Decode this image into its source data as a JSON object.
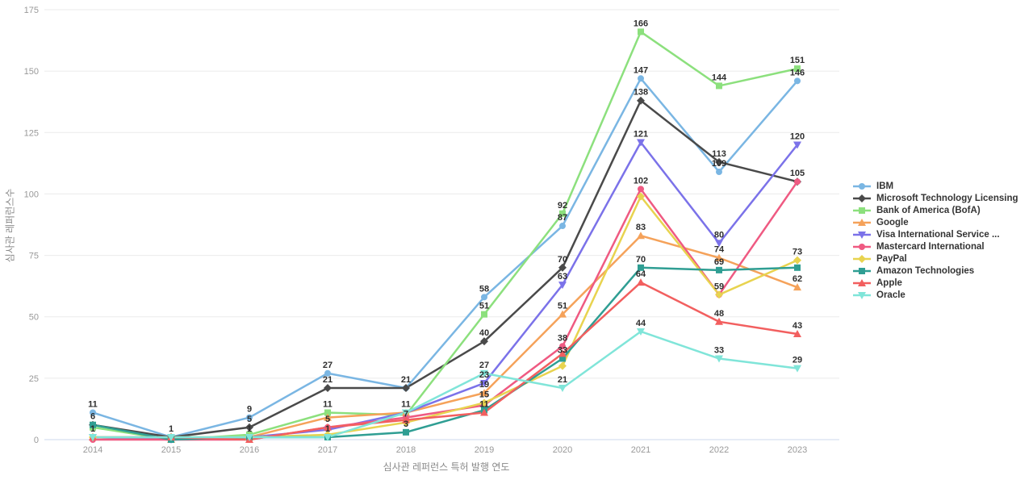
{
  "chart_data": {
    "type": "line",
    "title": "",
    "xlabel": "심사관 레퍼런스 특허 발행 연도",
    "ylabel": "심사관 레퍼런스수",
    "ylim": [
      0,
      175
    ],
    "yticks": [
      0,
      25,
      50,
      75,
      100,
      125,
      150,
      175
    ],
    "grid": "horizontal",
    "legend_position": "right",
    "categories": [
      "2014",
      "2015",
      "2016",
      "2017",
      "2018",
      "2019",
      "2020",
      "2021",
      "2022",
      "2023"
    ],
    "series": [
      {
        "name": "IBM",
        "color": "#7ab6e3",
        "marker": "circle",
        "values": [
          11,
          1,
          9,
          27,
          21,
          58,
          87,
          147,
          109,
          146
        ]
      },
      {
        "name": "Microsoft Technology Licensing",
        "color": "#4a4a4a",
        "marker": "diamond",
        "values": [
          6,
          1,
          5,
          21,
          21,
          40,
          70,
          138,
          113,
          105
        ]
      },
      {
        "name": "Bank of America (BofA)",
        "color": "#8ce07d",
        "marker": "square",
        "values": [
          5,
          0,
          2,
          11,
          10,
          51,
          92,
          166,
          144,
          151
        ]
      },
      {
        "name": "Google",
        "color": "#f5a25a",
        "marker": "triangle-up",
        "values": [
          1,
          0,
          1,
          9,
          11,
          19,
          51,
          83,
          74,
          62
        ]
      },
      {
        "name": "Visa International Service ...",
        "color": "#7b72e9",
        "marker": "triangle-down",
        "values": [
          1,
          0,
          1,
          4,
          11,
          23,
          63,
          121,
          80,
          120
        ]
      },
      {
        "name": "Mastercard International",
        "color": "#ef5a82",
        "marker": "circle",
        "values": [
          0,
          0,
          0,
          5,
          9,
          14,
          38,
          102,
          59,
          105
        ]
      },
      {
        "name": "PayPal",
        "color": "#e8d34f",
        "marker": "diamond",
        "values": [
          1,
          1,
          1,
          2,
          7,
          15,
          30,
          99,
          59,
          73
        ]
      },
      {
        "name": "Amazon Technologies",
        "color": "#2f9e93",
        "marker": "square",
        "values": [
          6,
          0,
          1,
          1,
          3,
          12,
          33,
          70,
          69,
          70
        ]
      },
      {
        "name": "Apple",
        "color": "#f25f5f",
        "marker": "triangle-up",
        "values": [
          1,
          1,
          0,
          5,
          8,
          11,
          35,
          64,
          48,
          43
        ]
      },
      {
        "name": "Oracle",
        "color": "#80e5d9",
        "marker": "triangle-down",
        "values": [
          1,
          1,
          1,
          1,
          11,
          27,
          21,
          44,
          33,
          29
        ]
      }
    ],
    "colors": {
      "grid_line": "#ebebeb",
      "zero_axis": "#ccd9ee",
      "tick_label": "#999999",
      "axis_title": "#8a8a8a",
      "data_label": "#2e2e2e",
      "background": "#ffffff"
    }
  }
}
